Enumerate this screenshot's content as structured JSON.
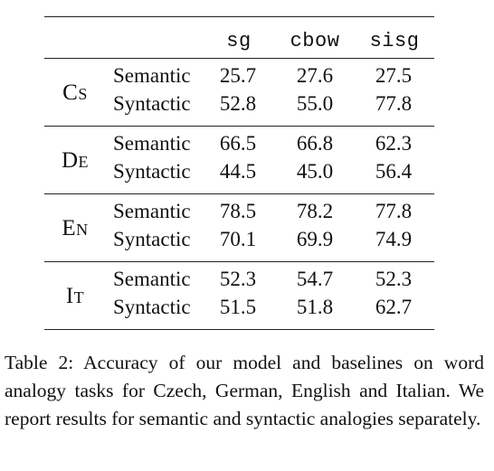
{
  "table": {
    "columns": [
      "sg",
      "cbow",
      "sisg"
    ],
    "groups": [
      {
        "language": "Cs",
        "rows": [
          {
            "type": "Semantic",
            "values": [
              "25.7",
              "27.6",
              "27.5"
            ]
          },
          {
            "type": "Syntactic",
            "values": [
              "52.8",
              "55.0",
              "77.8"
            ]
          }
        ]
      },
      {
        "language": "De",
        "rows": [
          {
            "type": "Semantic",
            "values": [
              "66.5",
              "66.8",
              "62.3"
            ]
          },
          {
            "type": "Syntactic",
            "values": [
              "44.5",
              "45.0",
              "56.4"
            ]
          }
        ]
      },
      {
        "language": "En",
        "rows": [
          {
            "type": "Semantic",
            "values": [
              "78.5",
              "78.2",
              "77.8"
            ]
          },
          {
            "type": "Syntactic",
            "values": [
              "70.1",
              "69.9",
              "74.9"
            ]
          }
        ]
      },
      {
        "language": "It",
        "rows": [
          {
            "type": "Semantic",
            "values": [
              "52.3",
              "54.7",
              "52.3"
            ]
          },
          {
            "type": "Syntactic",
            "values": [
              "51.5",
              "51.8",
              "62.7"
            ]
          }
        ]
      }
    ]
  },
  "caption": "Table 2: Accuracy of our model and baselines on word analogy tasks for Czech, German, English and Italian. We report results for semantic and syntactic analogies separately."
}
